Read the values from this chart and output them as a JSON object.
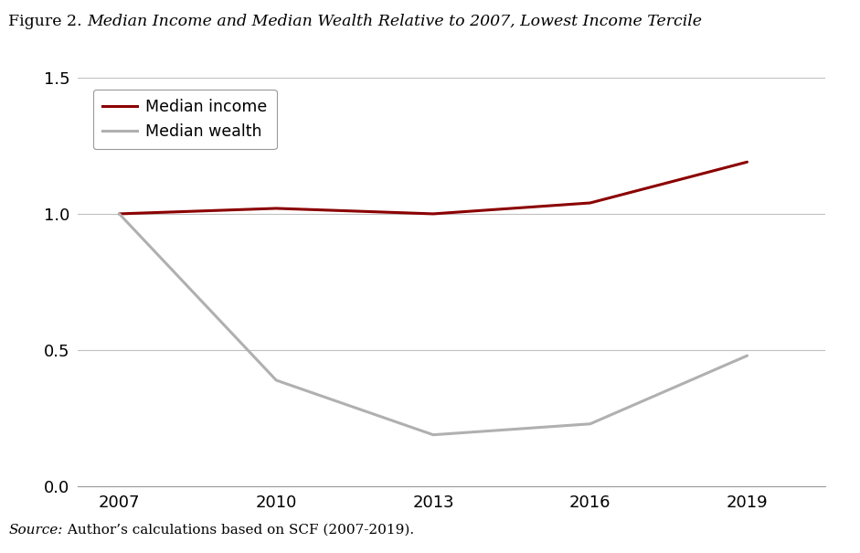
{
  "title_regular": "Figure 2. ",
  "title_italic": "Median Income and Median Wealth Relative to 2007, Lowest Income Tercile",
  "source_italic": "Source:",
  "source_regular": " Author’s calculations based on SCF (2007-2019).",
  "years": [
    2007,
    2010,
    2013,
    2016,
    2019
  ],
  "median_income": [
    1.0,
    1.02,
    1.0,
    1.04,
    1.19
  ],
  "median_wealth": [
    1.0,
    0.39,
    0.19,
    0.23,
    0.48
  ],
  "income_color": "#8B0000",
  "wealth_color": "#B0B0B0",
  "income_label": "Median income",
  "wealth_label": "Median wealth",
  "ylim": [
    0.0,
    1.5
  ],
  "yticks": [
    0.0,
    0.5,
    1.0,
    1.5
  ],
  "xlim": [
    2006.2,
    2020.5
  ],
  "xticks": [
    2007,
    2010,
    2013,
    2016,
    2019
  ],
  "line_width": 2.2,
  "background_color": "#FFFFFF",
  "grid_color": "#C0C0C0",
  "figsize": [
    9.41,
    6.05
  ],
  "dpi": 100
}
